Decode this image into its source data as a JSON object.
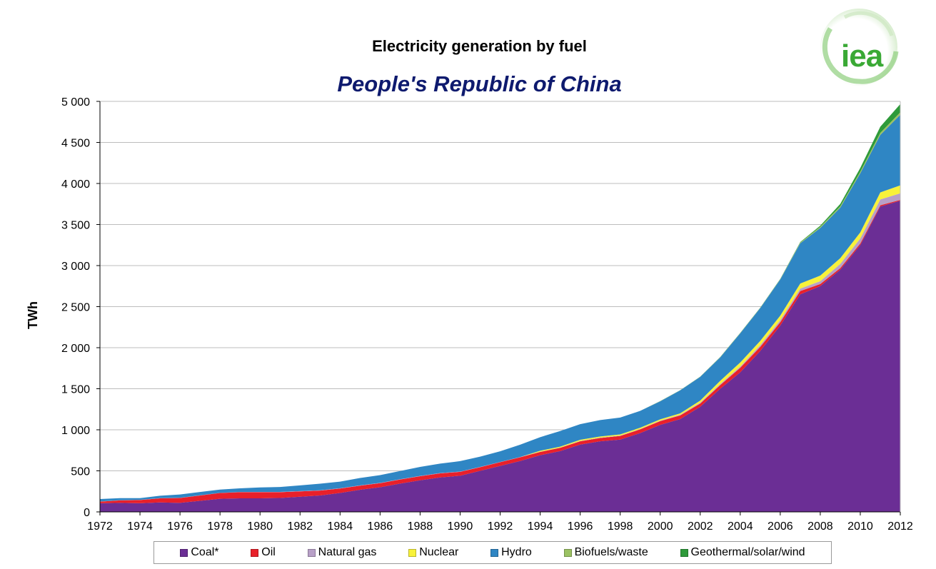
{
  "chart_data": {
    "type": "area",
    "stacked": true,
    "title": "Electricity generation by fuel",
    "subtitle": "People's Republic of China",
    "ylabel": "TWh",
    "xlabel": "",
    "ylim": [
      0,
      5000
    ],
    "xlim": [
      1972,
      2012
    ],
    "grid": true,
    "legend_position": "bottom",
    "y_ticks": [
      "0",
      "500",
      "1 000",
      "1 500",
      "2 000",
      "2 500",
      "3 000",
      "3 500",
      "4 000",
      "4 500",
      "5 000"
    ],
    "x_ticks": [
      "1972",
      "1974",
      "1976",
      "1978",
      "1980",
      "1982",
      "1984",
      "1986",
      "1988",
      "1990",
      "1992",
      "1994",
      "1996",
      "1998",
      "2000",
      "2002",
      "2004",
      "2006",
      "2008",
      "2010",
      "2012"
    ],
    "x": [
      1972,
      1973,
      1974,
      1975,
      1976,
      1977,
      1978,
      1979,
      1980,
      1981,
      1982,
      1983,
      1984,
      1985,
      1986,
      1987,
      1988,
      1989,
      1990,
      1991,
      1992,
      1993,
      1994,
      1995,
      1996,
      1997,
      1998,
      1999,
      2000,
      2001,
      2002,
      2003,
      2004,
      2005,
      2006,
      2007,
      2008,
      2009,
      2010,
      2011,
      2012
    ],
    "series": [
      {
        "name": "Coal*",
        "color": "#6b2e95",
        "values": [
          105,
          110,
          105,
          115,
          110,
          135,
          160,
          165,
          165,
          170,
          185,
          200,
          230,
          270,
          300,
          345,
          385,
          420,
          440,
          500,
          560,
          620,
          690,
          740,
          820,
          860,
          880,
          960,
          1060,
          1130,
          1280,
          1500,
          1700,
          1960,
          2270,
          2650,
          2750,
          2950,
          3250,
          3720,
          3790
        ]
      },
      {
        "name": "Oil",
        "color": "#e8202a",
        "values": [
          20,
          30,
          40,
          50,
          60,
          65,
          70,
          75,
          75,
          70,
          65,
          60,
          55,
          50,
          50,
          50,
          50,
          50,
          48,
          45,
          45,
          45,
          40,
          40,
          40,
          40,
          45,
          45,
          45,
          45,
          40,
          45,
          55,
          50,
          40,
          40,
          25,
          20,
          20,
          15,
          10
        ]
      },
      {
        "name": "Natural gas",
        "color": "#b8a0c8",
        "values": [
          2,
          2,
          2,
          2,
          2,
          2,
          2,
          2,
          3,
          3,
          3,
          3,
          3,
          3,
          3,
          3,
          3,
          3,
          3,
          3,
          3,
          3,
          3,
          3,
          4,
          4,
          4,
          5,
          6,
          8,
          10,
          12,
          15,
          20,
          25,
          30,
          35,
          50,
          60,
          70,
          80
        ]
      },
      {
        "name": "Nuclear",
        "color": "#f8f23a",
        "values": [
          0,
          0,
          0,
          0,
          0,
          0,
          0,
          0,
          0,
          0,
          0,
          0,
          0,
          0,
          0,
          0,
          0,
          0,
          0,
          0,
          0,
          0,
          12,
          12,
          14,
          15,
          15,
          15,
          16,
          17,
          25,
          40,
          50,
          53,
          55,
          62,
          68,
          70,
          74,
          86,
          97
        ]
      },
      {
        "name": "Hydro",
        "color": "#2f86c4",
        "values": [
          30,
          25,
          20,
          30,
          40,
          40,
          40,
          45,
          55,
          60,
          70,
          80,
          80,
          90,
          95,
          100,
          110,
          115,
          127,
          125,
          130,
          150,
          165,
          190,
          190,
          200,
          205,
          205,
          220,
          280,
          290,
          285,
          355,
          400,
          440,
          490,
          580,
          615,
          720,
          700,
          860
        ]
      },
      {
        "name": "Biofuels/waste",
        "color": "#9bc263",
        "values": [
          0,
          0,
          0,
          0,
          0,
          0,
          0,
          0,
          0,
          0,
          0,
          0,
          0,
          0,
          0,
          0,
          0,
          0,
          0,
          0,
          0,
          0,
          0,
          0,
          0,
          0,
          0,
          0,
          2,
          2,
          2,
          3,
          3,
          3,
          5,
          10,
          15,
          18,
          20,
          25,
          30
        ]
      },
      {
        "name": "Geothermal/solar/wind",
        "color": "#2e9a3a",
        "values": [
          0,
          0,
          0,
          0,
          0,
          0,
          0,
          0,
          0,
          0,
          0,
          0,
          0,
          0,
          0,
          0,
          0,
          0,
          0,
          0,
          0,
          0,
          0,
          0,
          0,
          0,
          0,
          0,
          1,
          1,
          1,
          2,
          2,
          2,
          3,
          5,
          13,
          28,
          45,
          75,
          100
        ]
      }
    ]
  },
  "logo": {
    "text": "iea",
    "color": "#3aa935"
  }
}
